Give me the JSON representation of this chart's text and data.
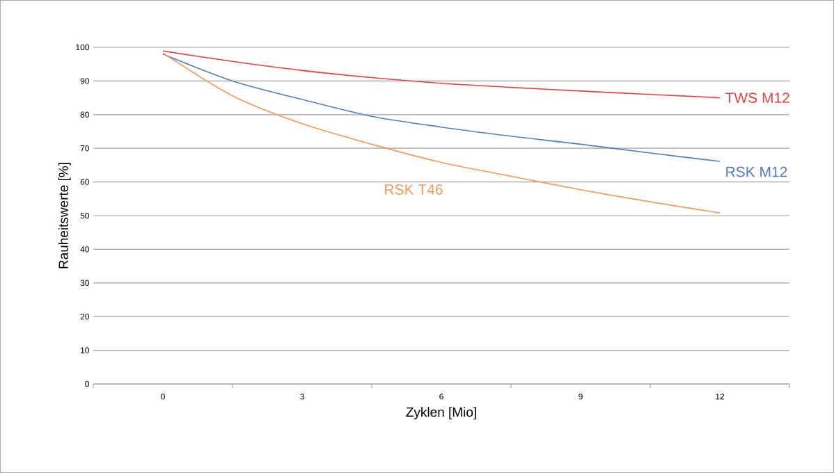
{
  "chart_data": {
    "type": "line",
    "xlabel": "Zyklen [Mio]",
    "ylabel": "Rauheitswerte [%]",
    "x": [
      0,
      1.5,
      3,
      4.5,
      6,
      7.5,
      9,
      10.5,
      12
    ],
    "series": [
      {
        "name": "TWS M12",
        "color": "#e8413f",
        "values": [
          98.9,
          95.8,
          93.1,
          91.0,
          89.3,
          88.1,
          87.0,
          86.0,
          85.0
        ]
      },
      {
        "name": "RSK M12",
        "color": "#4f7ec1",
        "values": [
          98,
          90,
          84.5,
          79.5,
          76.3,
          73.6,
          71.2,
          68.6,
          66.1
        ]
      },
      {
        "name": "RSK T46",
        "color": "#f39a5a",
        "values": [
          98.3,
          85.6,
          77.3,
          71.2,
          65.8,
          61.7,
          57.7,
          54.1,
          50.8
        ]
      }
    ],
    "xlim": [
      -1.5,
      13.5
    ],
    "xticks": [
      {
        "value": -1.5,
        "label": null
      },
      0,
      {
        "value": 1.5,
        "label": null
      },
      3,
      {
        "value": 4.5,
        "label": null
      },
      6,
      {
        "value": 7.5,
        "label": null
      },
      9,
      {
        "value": 10.5,
        "label": null
      },
      12,
      {
        "value": 13.5,
        "label": null
      }
    ],
    "ylim": [
      0,
      100
    ],
    "yticks": [
      0,
      10,
      20,
      30,
      40,
      50,
      60,
      70,
      80,
      90,
      100
    ],
    "grid": "y",
    "legend": false,
    "marker": "none",
    "line_style": "solid"
  }
}
